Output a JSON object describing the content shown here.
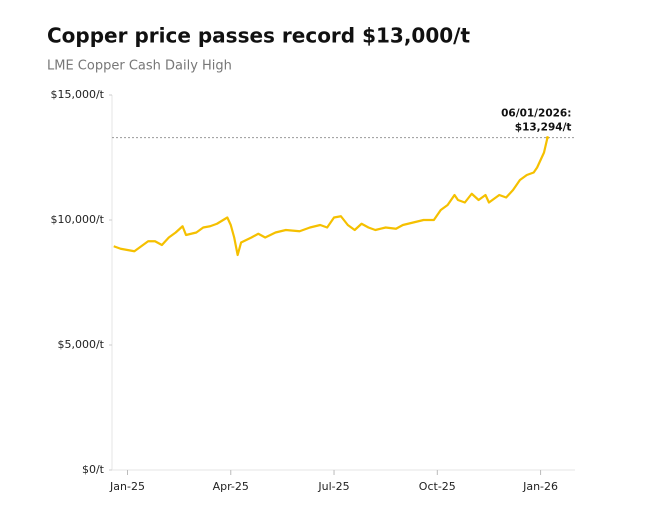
{
  "chart_data": {
    "type": "line",
    "title": "Copper price passes record $13,000/t",
    "subtitle": "LME Copper Cash Daily High",
    "x": [
      -0.4,
      -0.2,
      0,
      0.2,
      0.4,
      0.6,
      0.8,
      1,
      1.2,
      1.4,
      1.6,
      1.7,
      2,
      2.2,
      2.4,
      2.6,
      2.9,
      3,
      3.1,
      3.2,
      3.3,
      3.6,
      3.8,
      4,
      4.3,
      4.6,
      5,
      5.3,
      5.6,
      5.8,
      6,
      6.2,
      6.4,
      6.6,
      6.8,
      7,
      7.2,
      7.5,
      7.8,
      8,
      8.3,
      8.6,
      8.9,
      9.1,
      9.3,
      9.5,
      9.6,
      9.8,
      10,
      10.2,
      10.4,
      10.5,
      10.8,
      11,
      11.2,
      11.4,
      11.6,
      11.8,
      11.9,
      12,
      12.1,
      12.2
    ],
    "values": [
      8950,
      8850,
      8800,
      8750,
      8950,
      9150,
      9150,
      9000,
      9300,
      9500,
      9750,
      9400,
      9500,
      9700,
      9750,
      9850,
      10100,
      9800,
      9300,
      8600,
      9100,
      9300,
      9450,
      9300,
      9500,
      9600,
      9550,
      9700,
      9800,
      9700,
      10100,
      10150,
      9800,
      9600,
      9850,
      9700,
      9600,
      9700,
      9650,
      9800,
      9900,
      10000,
      10000,
      10400,
      10600,
      11000,
      10800,
      10700,
      11050,
      10800,
      11000,
      10700,
      11000,
      10900,
      11200,
      11600,
      11800,
      11900,
      12100,
      12400,
      12700,
      13294
    ],
    "color": "#f5c000",
    "xlim": [
      -0.45,
      13
    ],
    "xticks": [
      {
        "value": 0,
        "label": "Jan-25"
      },
      {
        "value": 3,
        "label": "Apr-25"
      },
      {
        "value": 6,
        "label": "Jul-25"
      },
      {
        "value": 9,
        "label": "Oct-25"
      },
      {
        "value": 12,
        "label": "Jan-26"
      }
    ],
    "ylim": [
      0,
      15000
    ],
    "yticks": [
      {
        "value": 0,
        "label": "$0/t"
      },
      {
        "value": 5000,
        "label": "$5,000/t"
      },
      {
        "value": 10000,
        "label": "$10,000/t"
      },
      {
        "value": 15000,
        "label": "$15,000/t"
      }
    ],
    "annotation": {
      "x": 12.2,
      "y": 13294,
      "label": "06/01/2026:",
      "value_label": "$13,294/t"
    }
  }
}
